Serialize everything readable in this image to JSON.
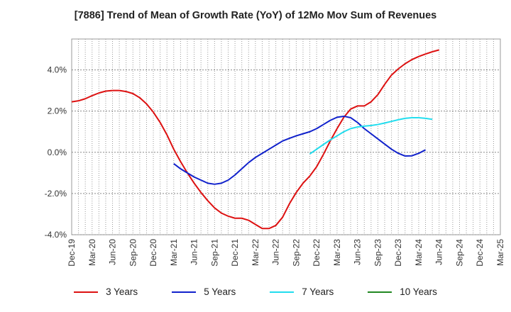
{
  "chart_data": {
    "type": "line",
    "title": "[7886]  Trend of Mean of Growth Rate (YoY) of 12Mo Mov Sum of Revenues",
    "xlabel": "",
    "ylabel": "",
    "ylim": [
      -4.0,
      5.5
    ],
    "y_ticks": [
      {
        "value": -4.0,
        "label": "-4.0%"
      },
      {
        "value": -2.0,
        "label": "-2.0%"
      },
      {
        "value": 0.0,
        "label": "0.0%"
      },
      {
        "value": 2.0,
        "label": "2.0%"
      },
      {
        "value": 4.0,
        "label": "4.0%"
      }
    ],
    "x_ticks": [
      "Dec-19",
      "Mar-20",
      "Jun-20",
      "Sep-20",
      "Dec-20",
      "Mar-21",
      "Jun-21",
      "Sep-21",
      "Dec-21",
      "Mar-22",
      "Jun-22",
      "Sep-22",
      "Dec-22",
      "Mar-23",
      "Jun-23",
      "Sep-23",
      "Dec-23",
      "Mar-24",
      "Jun-24",
      "Sep-24",
      "Dec-24",
      "Mar-25"
    ],
    "grid": true,
    "legend_position": "bottom",
    "series": [
      {
        "name": "3 Years",
        "color": "#dd1111",
        "start_index": 0,
        "values": [
          2.45,
          2.5,
          2.6,
          2.75,
          2.88,
          2.97,
          3.0,
          3.0,
          2.95,
          2.85,
          2.65,
          2.35,
          1.95,
          1.45,
          0.85,
          0.15,
          -0.45,
          -1.0,
          -1.5,
          -1.95,
          -2.35,
          -2.7,
          -2.95,
          -3.1,
          -3.2,
          -3.2,
          -3.3,
          -3.5,
          -3.7,
          -3.7,
          -3.55,
          -3.15,
          -2.5,
          -1.95,
          -1.5,
          -1.15,
          -0.7,
          -0.1,
          0.55,
          1.15,
          1.7,
          2.1,
          2.25,
          2.25,
          2.45,
          2.8,
          3.3,
          3.75,
          4.05,
          4.3,
          4.5,
          4.65,
          4.77,
          4.88,
          4.97
        ]
      },
      {
        "name": "5 Years",
        "color": "#1122cc",
        "start_index": 15,
        "values": [
          -0.55,
          -0.8,
          -1.0,
          -1.2,
          -1.35,
          -1.5,
          -1.55,
          -1.5,
          -1.35,
          -1.1,
          -0.8,
          -0.5,
          -0.25,
          -0.05,
          0.15,
          0.35,
          0.55,
          0.68,
          0.8,
          0.9,
          1.0,
          1.15,
          1.35,
          1.55,
          1.7,
          1.75,
          1.68,
          1.45,
          1.15,
          0.9,
          0.65,
          0.4,
          0.15,
          -0.05,
          -0.18,
          -0.17,
          -0.05,
          0.12
        ]
      },
      {
        "name": "7 Years",
        "color": "#22ddee",
        "start_index": 35,
        "values": [
          -0.08,
          0.15,
          0.38,
          0.6,
          0.8,
          1.0,
          1.15,
          1.23,
          1.27,
          1.3,
          1.35,
          1.42,
          1.5,
          1.58,
          1.65,
          1.68,
          1.68,
          1.65,
          1.6
        ]
      },
      {
        "name": "10 Years",
        "color": "#228822",
        "start_index": 0,
        "values": []
      }
    ]
  }
}
